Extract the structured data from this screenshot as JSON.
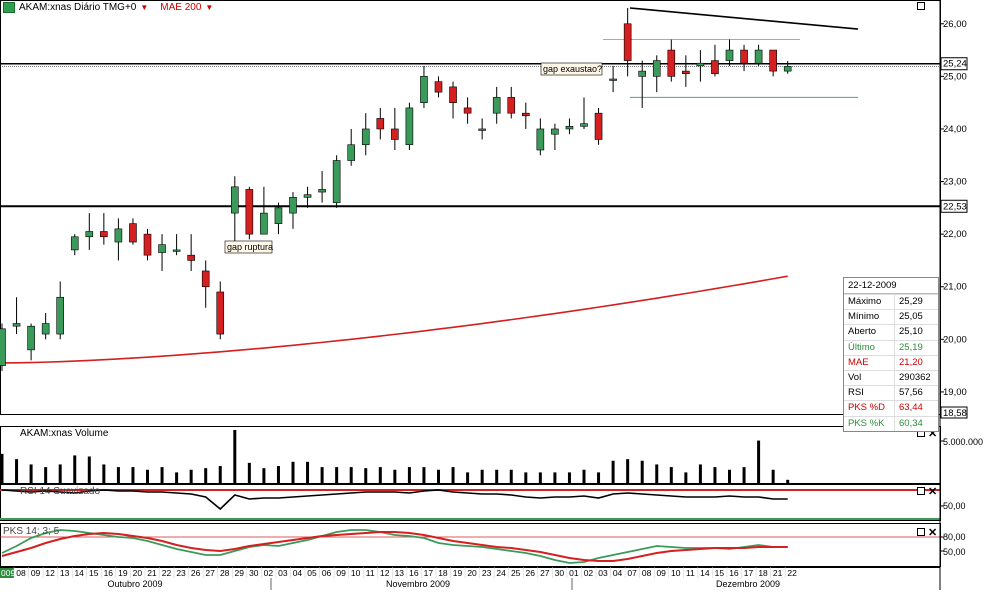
{
  "header": {
    "symbol": "AKAM:xnas Diário TMG+0",
    "indicator": "MAE 200",
    "indicator_color": "#cc0000"
  },
  "panes": {
    "volume_title": "AKAM:xnas Volume",
    "rsi_title": "RSI 14 Suavizado",
    "pks_title": "PKS 14; 3; 5"
  },
  "annotations": {
    "gap_ruptura": "gap ruptura",
    "gap_exaustao": "gap exaustao?"
  },
  "price_axis": {
    "ticks": [
      "26,00",
      "25,00",
      "24,00",
      "23,00",
      "22,00",
      "21,00",
      "20,00",
      "19,00"
    ],
    "tick_values": [
      26,
      25,
      24,
      23,
      22,
      21,
      20,
      19
    ],
    "current_price_label": "25,24",
    "support_label": "22,53",
    "bottom_label": "18,58"
  },
  "volume_axis": {
    "tick": "5.000.000"
  },
  "rsi_axis": {
    "tick": "50,00"
  },
  "pks_axis": {
    "ticks": [
      "80,00",
      "50,00"
    ]
  },
  "time_axis": {
    "days": [
      "08",
      "09",
      "12",
      "13",
      "14",
      "15",
      "16",
      "19",
      "20",
      "21",
      "22",
      "23",
      "26",
      "27",
      "28",
      "29",
      "30",
      "02",
      "03",
      "04",
      "05",
      "06",
      "09",
      "10",
      "11",
      "12",
      "13",
      "16",
      "17",
      "18",
      "19",
      "20",
      "23",
      "24",
      "25",
      "26",
      "27",
      "30",
      "01",
      "02",
      "03",
      "04",
      "07",
      "08",
      "09",
      "10",
      "11",
      "14",
      "15",
      "16",
      "17",
      "18",
      "21",
      "22"
    ],
    "months": [
      "Outubro 2009",
      "Novembro 2009",
      "Dezembro 2009"
    ],
    "left_marker": "009"
  },
  "info_box": {
    "date": "22-12-2009",
    "rows": [
      {
        "label": "Máximo",
        "value": "25,29",
        "color": "#000000"
      },
      {
        "label": "Mínimo",
        "value": "25,05",
        "color": "#000000"
      },
      {
        "label": "Aberto",
        "value": "25,10",
        "color": "#000000"
      },
      {
        "label": "Último",
        "value": "25,19",
        "color": "#2e8b3e"
      },
      {
        "label": "MAE",
        "value": "21,20",
        "color": "#cc0000"
      },
      {
        "label": "Vol",
        "value": "290362",
        "color": "#000000"
      },
      {
        "label": "RSI",
        "value": "57,56",
        "color": "#000000"
      },
      {
        "label": "PKS %D",
        "value": "63,44",
        "color": "#cc0000"
      },
      {
        "label": "PKS %K",
        "value": "60,34",
        "color": "#2e8b3e"
      }
    ]
  },
  "colors": {
    "up_candle": "#3a9a5a",
    "down_candle": "#d42020",
    "ma_line": "#d42020",
    "pks_d": "#d42020",
    "pks_k": "#3a9a5a",
    "resistance_line": "#4aa0a0"
  },
  "chart_data": {
    "type": "candlestick",
    "ylim": [
      18.58,
      26.3
    ],
    "candles": [
      {
        "o": 19.5,
        "h": 20.3,
        "l": 19.4,
        "c": 20.2
      },
      {
        "o": 20.25,
        "h": 20.8,
        "l": 20.1,
        "c": 20.3
      },
      {
        "o": 19.8,
        "h": 20.3,
        "l": 19.6,
        "c": 20.25
      },
      {
        "o": 20.1,
        "h": 20.5,
        "l": 20.0,
        "c": 20.3
      },
      {
        "o": 20.1,
        "h": 21.1,
        "l": 20.0,
        "c": 20.8
      },
      {
        "o": 21.7,
        "h": 22.0,
        "l": 21.6,
        "c": 21.95
      },
      {
        "o": 21.95,
        "h": 22.4,
        "l": 21.7,
        "c": 22.05
      },
      {
        "o": 22.05,
        "h": 22.4,
        "l": 21.8,
        "c": 21.95
      },
      {
        "o": 21.85,
        "h": 22.3,
        "l": 21.5,
        "c": 22.1
      },
      {
        "o": 22.2,
        "h": 22.3,
        "l": 21.8,
        "c": 21.85
      },
      {
        "o": 22.0,
        "h": 22.1,
        "l": 21.5,
        "c": 21.6
      },
      {
        "o": 21.65,
        "h": 22.0,
        "l": 21.3,
        "c": 21.8
      },
      {
        "o": 21.7,
        "h": 22.0,
        "l": 21.6,
        "c": 21.7
      },
      {
        "o": 21.6,
        "h": 22.0,
        "l": 21.3,
        "c": 21.5
      },
      {
        "o": 21.3,
        "h": 21.5,
        "l": 20.6,
        "c": 21.0
      },
      {
        "o": 20.9,
        "h": 21.1,
        "l": 20.0,
        "c": 20.1
      },
      {
        "o": 22.4,
        "h": 23.1,
        "l": 21.7,
        "c": 22.9
      },
      {
        "o": 22.85,
        "h": 22.9,
        "l": 21.9,
        "c": 22.0
      },
      {
        "o": 22.0,
        "h": 22.9,
        "l": 22.0,
        "c": 22.4
      },
      {
        "o": 22.2,
        "h": 22.6,
        "l": 22.0,
        "c": 22.5
      },
      {
        "o": 22.4,
        "h": 22.8,
        "l": 22.1,
        "c": 22.7
      },
      {
        "o": 22.7,
        "h": 22.9,
        "l": 22.5,
        "c": 22.75
      },
      {
        "o": 22.8,
        "h": 23.2,
        "l": 22.6,
        "c": 22.85
      },
      {
        "o": 22.6,
        "h": 23.5,
        "l": 22.5,
        "c": 23.4
      },
      {
        "o": 23.4,
        "h": 24.0,
        "l": 23.3,
        "c": 23.7
      },
      {
        "o": 23.7,
        "h": 24.3,
        "l": 23.5,
        "c": 24.0
      },
      {
        "o": 24.2,
        "h": 24.4,
        "l": 23.8,
        "c": 24.0
      },
      {
        "o": 24.0,
        "h": 24.4,
        "l": 23.6,
        "c": 23.8
      },
      {
        "o": 23.7,
        "h": 24.5,
        "l": 23.6,
        "c": 24.4
      },
      {
        "o": 24.5,
        "h": 25.2,
        "l": 24.4,
        "c": 25.0
      },
      {
        "o": 24.9,
        "h": 25.0,
        "l": 24.6,
        "c": 24.7
      },
      {
        "o": 24.8,
        "h": 24.9,
        "l": 24.2,
        "c": 24.5
      },
      {
        "o": 24.4,
        "h": 24.6,
        "l": 24.1,
        "c": 24.3
      },
      {
        "o": 24.0,
        "h": 24.2,
        "l": 23.8,
        "c": 24.0
      },
      {
        "o": 24.3,
        "h": 24.8,
        "l": 24.1,
        "c": 24.6
      },
      {
        "o": 24.6,
        "h": 24.8,
        "l": 24.2,
        "c": 24.3
      },
      {
        "o": 24.3,
        "h": 24.5,
        "l": 24.0,
        "c": 24.25
      },
      {
        "o": 23.6,
        "h": 24.2,
        "l": 23.5,
        "c": 24.0
      },
      {
        "o": 23.9,
        "h": 24.1,
        "l": 23.6,
        "c": 24.0
      },
      {
        "o": 24.0,
        "h": 24.2,
        "l": 23.9,
        "c": 24.05
      },
      {
        "o": 24.05,
        "h": 24.6,
        "l": 24.0,
        "c": 24.1
      },
      {
        "o": 24.3,
        "h": 24.4,
        "l": 23.7,
        "c": 23.8
      },
      {
        "o": 24.95,
        "h": 25.2,
        "l": 24.7,
        "c": 24.95
      },
      {
        "o": 26.0,
        "h": 26.3,
        "l": 25.0,
        "c": 25.3
      },
      {
        "o": 25.0,
        "h": 25.3,
        "l": 24.4,
        "c": 25.1
      },
      {
        "o": 25.0,
        "h": 25.4,
        "l": 24.7,
        "c": 25.3
      },
      {
        "o": 25.5,
        "h": 25.7,
        "l": 24.9,
        "c": 25.0
      },
      {
        "o": 25.1,
        "h": 25.4,
        "l": 24.8,
        "c": 25.05
      },
      {
        "o": 25.2,
        "h": 25.5,
        "l": 24.9,
        "c": 25.25
      },
      {
        "o": 25.3,
        "h": 25.6,
        "l": 25.0,
        "c": 25.05
      },
      {
        "o": 25.3,
        "h": 25.7,
        "l": 25.2,
        "c": 25.5
      },
      {
        "o": 25.5,
        "h": 25.6,
        "l": 25.1,
        "c": 25.25
      },
      {
        "o": 25.25,
        "h": 25.6,
        "l": 25.2,
        "c": 25.5
      },
      {
        "o": 25.5,
        "h": 25.5,
        "l": 25.0,
        "c": 25.1
      },
      {
        "o": 25.1,
        "h": 25.29,
        "l": 25.05,
        "c": 25.19
      }
    ],
    "ma200": {
      "start": 19.55,
      "end": 21.2
    },
    "horizontal_lines": [
      {
        "value": 25.24
      },
      {
        "value": 22.53
      }
    ],
    "trendline": {
      "from": 26.3,
      "to": 25.9
    },
    "volume": [
      0.55,
      0.45,
      0.35,
      0.3,
      0.35,
      0.52,
      0.5,
      0.35,
      0.3,
      0.3,
      0.25,
      0.3,
      0.2,
      0.25,
      0.28,
      0.32,
      1.0,
      0.38,
      0.28,
      0.32,
      0.4,
      0.4,
      0.3,
      0.3,
      0.3,
      0.28,
      0.3,
      0.25,
      0.3,
      0.3,
      0.25,
      0.3,
      0.2,
      0.25,
      0.25,
      0.25,
      0.2,
      0.2,
      0.2,
      0.2,
      0.25,
      0.2,
      0.42,
      0.45,
      0.42,
      0.35,
      0.3,
      0.2,
      0.35,
      0.3,
      0.25,
      0.3,
      0.8,
      0.25,
      0.06
    ]
  }
}
